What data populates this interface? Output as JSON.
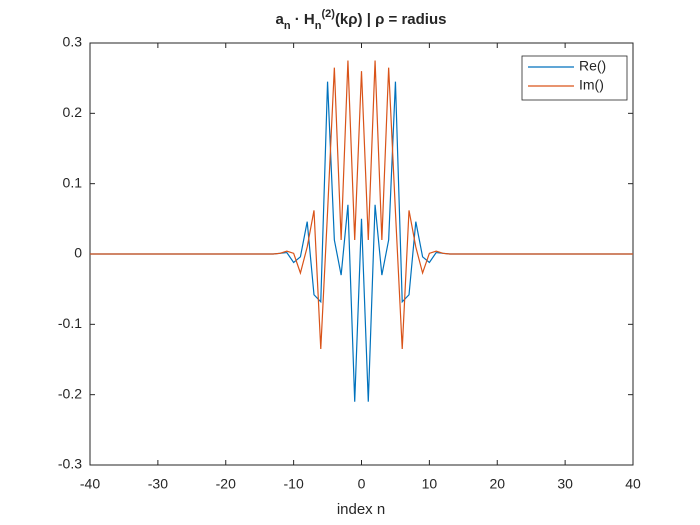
{
  "chart_data": {
    "type": "line",
    "title": {
      "parts": [
        {
          "text": "a"
        },
        {
          "text": "n",
          "shift": "sub"
        },
        {
          "text": " · H"
        },
        {
          "text": "n",
          "shift": "sub"
        },
        {
          "text": "(2)",
          "shift": "super"
        },
        {
          "text": "(kρ) | ρ = radius"
        }
      ]
    },
    "xlabel": "index n",
    "x": [
      -40,
      -39,
      -38,
      -37,
      -36,
      -35,
      -34,
      -33,
      -32,
      -31,
      -30,
      -29,
      -28,
      -27,
      -26,
      -25,
      -24,
      -23,
      -22,
      -21,
      -20,
      -19,
      -18,
      -17,
      -16,
      -15,
      -14,
      -13,
      -12,
      -11,
      -10,
      -9,
      -8,
      -7,
      -6,
      -5,
      -4,
      -3,
      -2,
      -1,
      0,
      1,
      2,
      3,
      4,
      5,
      6,
      7,
      8,
      9,
      10,
      11,
      12,
      13,
      14,
      15,
      16,
      17,
      18,
      19,
      20,
      21,
      22,
      23,
      24,
      25,
      26,
      27,
      28,
      29,
      30,
      31,
      32,
      33,
      34,
      35,
      36,
      37,
      38,
      39,
      40
    ],
    "series": [
      {
        "name": "Re()",
        "color": "#0072BD",
        "values": [
          0,
          0,
          0,
          0,
          0,
          0,
          0,
          0,
          0,
          0,
          0,
          0,
          0,
          0,
          0,
          0,
          0,
          0,
          0,
          0,
          0,
          0,
          0,
          0,
          0,
          0,
          0,
          0,
          0.001,
          0.002,
          -0.012,
          -0.004,
          0.046,
          -0.058,
          -0.068,
          0.245,
          0.02,
          -0.03,
          0.07,
          -0.21,
          0.05,
          -0.21,
          0.07,
          -0.03,
          0.02,
          0.245,
          -0.068,
          -0.058,
          0.046,
          -0.004,
          -0.012,
          0.002,
          0.001,
          0,
          0,
          0,
          0,
          0,
          0,
          0,
          0,
          0,
          0,
          0,
          0,
          0,
          0,
          0,
          0,
          0,
          0,
          0,
          0,
          0,
          0,
          0,
          0,
          0,
          0,
          0,
          0
        ]
      },
      {
        "name": "Im()",
        "color": "#D95319",
        "values": [
          0,
          0,
          0,
          0,
          0,
          0,
          0,
          0,
          0,
          0,
          0,
          0,
          0,
          0,
          0,
          0,
          0,
          0,
          0,
          0,
          0,
          0,
          0,
          0,
          0,
          0,
          0,
          0,
          0.001,
          0.004,
          0.001,
          -0.027,
          0.01,
          0.062,
          -0.135,
          0.06,
          0.265,
          0.02,
          0.275,
          0.02,
          0.26,
          0.02,
          0.275,
          0.02,
          0.265,
          0.06,
          -0.135,
          0.062,
          0.01,
          -0.027,
          0.001,
          0.004,
          0.001,
          0,
          0,
          0,
          0,
          0,
          0,
          0,
          0,
          0,
          0,
          0,
          0,
          0,
          0,
          0,
          0,
          0,
          0,
          0,
          0,
          0,
          0,
          0,
          0,
          0,
          0,
          0,
          0
        ]
      }
    ],
    "xlim": [
      -40,
      40
    ],
    "xticks": [
      -40,
      -30,
      -20,
      -10,
      0,
      10,
      20,
      30,
      40
    ],
    "ylim": [
      -0.3,
      0.3
    ],
    "yticks": [
      -0.3,
      -0.2,
      -0.1,
      0,
      0.1,
      0.2,
      0.3
    ],
    "grid": false,
    "legend": "top-right"
  }
}
